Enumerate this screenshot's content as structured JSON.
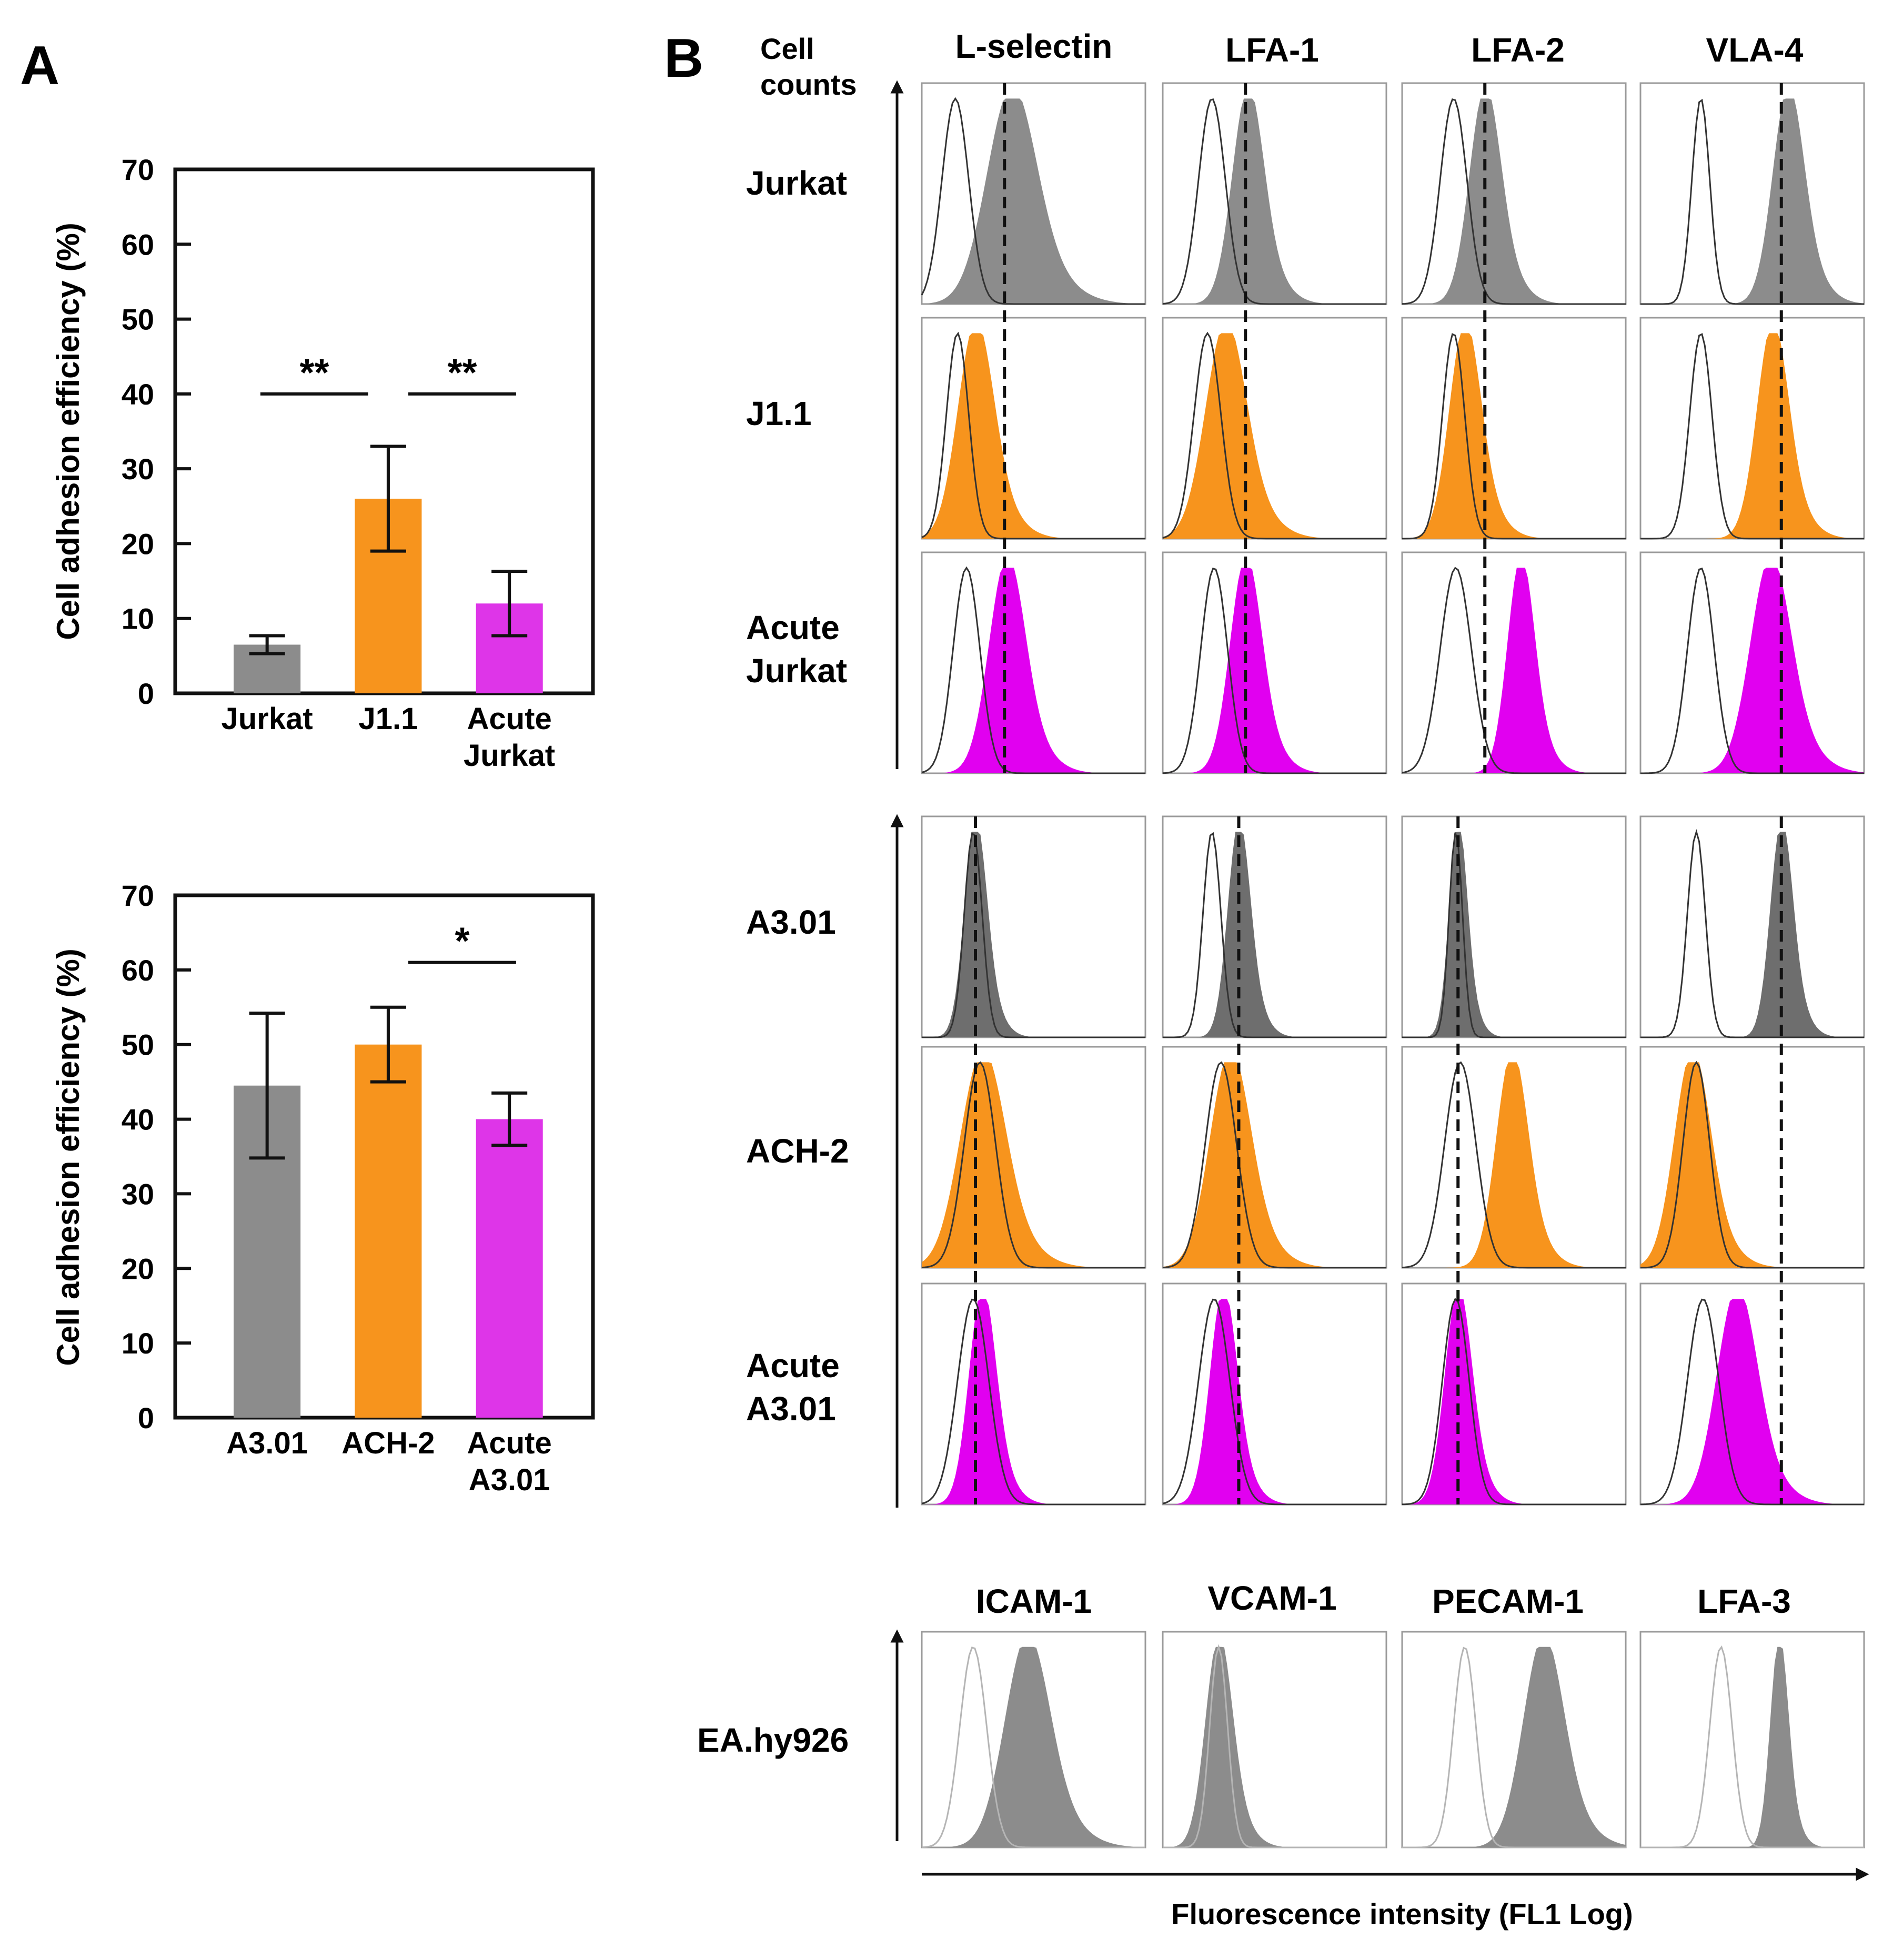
{
  "panel_a": {
    "label": "A",
    "colors": {
      "jurkat": "#8c8c8c",
      "chronic": "#f7941d",
      "acute": "#de35e8"
    },
    "charts": [
      {
        "type": "bar",
        "name": "jurkat-bar-chart",
        "categories": [
          "Jurkat",
          "J1.1",
          "Acute Jurkat"
        ],
        "category_lines": [
          [
            "Jurkat"
          ],
          [
            "J1.1"
          ],
          [
            "Acute",
            "Jurkat"
          ]
        ],
        "values": [
          6.5,
          26,
          12
        ],
        "errors": [
          1.2,
          7,
          4.3
        ],
        "ylabel": "Cell adhesion efficiency (%)",
        "ylim": [
          0,
          70
        ],
        "yticks": [
          "0",
          "10",
          "20",
          "30",
          "40",
          "50",
          "60",
          "70"
        ],
        "significance": [
          {
            "from": 0,
            "to": 1,
            "y": 40,
            "label": "**"
          },
          {
            "from": 1,
            "to": 2,
            "y": 40,
            "label": "**"
          }
        ]
      },
      {
        "type": "bar",
        "name": "a301-bar-chart",
        "categories": [
          "A3.01",
          "ACH-2",
          "Acute A3.01"
        ],
        "category_lines": [
          [
            "A3.01"
          ],
          [
            "ACH-2"
          ],
          [
            "Acute",
            "A3.01"
          ]
        ],
        "values": [
          44.5,
          50,
          40
        ],
        "errors": [
          9.7,
          5,
          3.5
        ],
        "ylabel": "Cell adhesion efficiency (%)",
        "ylim": [
          0,
          70
        ],
        "yticks": [
          "0",
          "10",
          "20",
          "30",
          "40",
          "50",
          "60",
          "70"
        ],
        "significance": [
          {
            "from": 1,
            "to": 2,
            "y": 61,
            "label": "*"
          }
        ]
      }
    ]
  },
  "panel_b": {
    "label": "B",
    "cell_counts_label": [
      "Cell",
      "counts"
    ],
    "x_axis_label": "Fluorescence intensity (FL1 Log)",
    "markers_top": [
      "L-selectin",
      "LFA-1",
      "LFA-2",
      "VLA-4"
    ],
    "markers_bottom": [
      "ICAM-1",
      "VCAM-1",
      "PECAM-1",
      "LFA-3"
    ],
    "groups": [
      {
        "rows": [
          {
            "lines": [
              "Jurkat"
            ],
            "color": "#8c8c8c",
            "peaks": [
              0.4,
              0.38,
              0.37,
              0.66
            ],
            "widths": [
              0.11,
              0.07,
              0.07,
              0.07
            ],
            "ctrl": [
              0.15,
              0.22,
              0.23,
              0.27
            ],
            "ctrlw": [
              0.06,
              0.06,
              0.06,
              0.04
            ]
          },
          {
            "lines": [
              "J1.1"
            ],
            "color": "#f7941d",
            "peaks": [
              0.24,
              0.28,
              0.28,
              0.59
            ],
            "widths": [
              0.08,
              0.09,
              0.07,
              0.07
            ],
            "ctrl": [
              0.16,
              0.2,
              0.23,
              0.27
            ],
            "ctrlw": [
              0.05,
              0.06,
              0.05,
              0.05
            ]
          },
          {
            "lines": [
              "Acute",
              "Jurkat"
            ],
            "color": "#e100f0",
            "peaks": [
              0.38,
              0.37,
              0.53,
              0.58
            ],
            "widths": [
              0.08,
              0.07,
              0.06,
              0.09
            ],
            "ctrl": [
              0.2,
              0.23,
              0.24,
              0.27
            ],
            "ctrlw": [
              0.06,
              0.06,
              0.07,
              0.06
            ]
          }
        ],
        "dashed": [
          0.37,
          0.37,
          0.37,
          0.63
        ]
      },
      {
        "rows": [
          {
            "lines": [
              "A3.01"
            ],
            "color": "#6e6e6e",
            "peaks": [
              0.24,
              0.34,
              0.25,
              0.63
            ],
            "widths": [
              0.05,
              0.05,
              0.04,
              0.05
            ],
            "ctrl": [
              0.23,
              0.22,
              0.24,
              0.25
            ],
            "ctrlw": [
              0.04,
              0.04,
              0.03,
              0.04
            ]
          },
          {
            "lines": [
              "ACH-2"
            ],
            "color": "#f7941d",
            "peaks": [
              0.27,
              0.3,
              0.49,
              0.23
            ],
            "widths": [
              0.1,
              0.09,
              0.07,
              0.08
            ],
            "ctrl": [
              0.26,
              0.26,
              0.26,
              0.25
            ],
            "ctrlw": [
              0.07,
              0.07,
              0.07,
              0.06
            ]
          },
          {
            "lines": [
              "Acute",
              "A3.01"
            ],
            "color": "#e100f0",
            "peaks": [
              0.27,
              0.27,
              0.25,
              0.43
            ],
            "widths": [
              0.06,
              0.06,
              0.06,
              0.09
            ],
            "ctrl": [
              0.23,
              0.23,
              0.24,
              0.28
            ],
            "ctrlw": [
              0.07,
              0.07,
              0.06,
              0.07
            ]
          }
        ],
        "dashed": [
          0.24,
          0.34,
          0.25,
          0.63
        ]
      },
      {
        "rows": [
          {
            "lines": [
              "EA.hy926"
            ],
            "color": "#8c8c8c",
            "peaks": [
              0.47,
              0.25,
              0.63,
              0.62
            ],
            "widths": [
              0.1,
              0.06,
              0.09,
              0.04
            ],
            "ctrl": [
              0.23,
              0.25,
              0.28,
              0.36
            ],
            "ctrlw": [
              0.06,
              0.04,
              0.05,
              0.05
            ]
          }
        ],
        "dashed": []
      }
    ]
  }
}
